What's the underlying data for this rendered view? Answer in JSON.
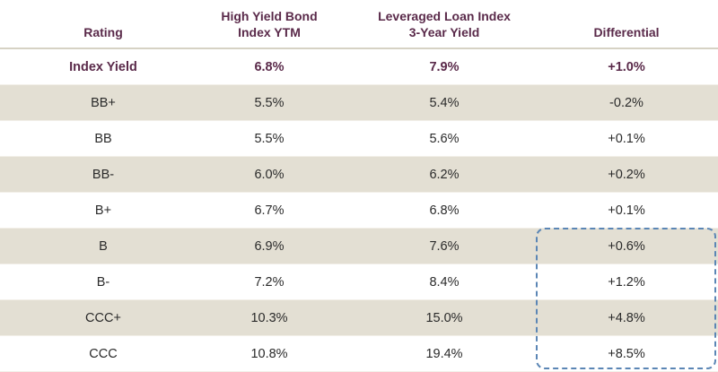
{
  "headers": {
    "rating": "Rating",
    "hy_line1": "High Yield Bond",
    "hy_line2": "Index YTM",
    "ll_line1": "Leveraged Loan Index",
    "ll_line2": "3-Year Yield",
    "diff": "Differential"
  },
  "index_row": {
    "rating": "Index Yield",
    "hy": "6.8%",
    "ll": "7.9%",
    "diff": "+1.0%"
  },
  "rows": [
    {
      "rating": "BB+",
      "hy": "5.5%",
      "ll": "5.4%",
      "diff": "-0.2%"
    },
    {
      "rating": "BB",
      "hy": "5.5%",
      "ll": "5.6%",
      "diff": "+0.1%"
    },
    {
      "rating": "BB-",
      "hy": "6.0%",
      "ll": "6.2%",
      "diff": "+0.2%"
    },
    {
      "rating": "B+",
      "hy": "6.7%",
      "ll": "6.8%",
      "diff": "+0.1%"
    },
    {
      "rating": "B",
      "hy": "6.9%",
      "ll": "7.6%",
      "diff": "+0.6%"
    },
    {
      "rating": "B-",
      "hy": "7.2%",
      "ll": "8.4%",
      "diff": "+1.2%"
    },
    {
      "rating": "CCC+",
      "hy": "10.3%",
      "ll": "15.0%",
      "diff": "+4.8%"
    },
    {
      "rating": "CCC",
      "hy": "10.8%",
      "ll": "19.4%",
      "diff": "+8.5%"
    }
  ],
  "colors": {
    "header_text": "#5a2a4a",
    "stripe": "#e3dfd3",
    "highlight_box": "#5b86b5"
  }
}
